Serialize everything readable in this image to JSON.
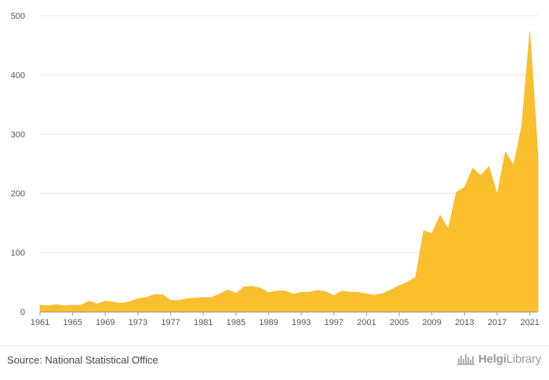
{
  "chart_data": {
    "type": "area",
    "title": "",
    "xlabel": "",
    "ylabel": "",
    "color": "#fbbf2e",
    "xlim": [
      1961,
      2022
    ],
    "ylim": [
      0,
      500
    ],
    "x_ticks": [
      1961,
      1965,
      1969,
      1973,
      1977,
      1981,
      1985,
      1989,
      1993,
      1997,
      2001,
      2005,
      2009,
      2013,
      2017,
      2021
    ],
    "y_ticks": [
      0,
      100,
      200,
      300,
      400,
      500
    ],
    "grid": "horizontal",
    "x": [
      1961,
      1962,
      1963,
      1964,
      1965,
      1966,
      1967,
      1968,
      1969,
      1970,
      1971,
      1972,
      1973,
      1974,
      1975,
      1976,
      1977,
      1978,
      1979,
      1980,
      1981,
      1982,
      1983,
      1984,
      1985,
      1986,
      1987,
      1988,
      1989,
      1990,
      1991,
      1992,
      1993,
      1994,
      1995,
      1996,
      1997,
      1998,
      1999,
      2000,
      2001,
      2002,
      2003,
      2004,
      2005,
      2006,
      2007,
      2008,
      2009,
      2010,
      2011,
      2012,
      2013,
      2014,
      2015,
      2016,
      2017,
      2018,
      2019,
      2020,
      2021,
      2022
    ],
    "values": [
      11,
      10,
      12,
      10,
      11,
      11,
      18,
      13,
      18,
      16,
      14,
      17,
      22,
      24,
      29,
      29,
      19,
      19,
      22,
      23,
      24,
      24,
      30,
      37,
      31,
      42,
      43,
      40,
      32,
      35,
      35,
      30,
      33,
      33,
      36,
      34,
      27,
      35,
      33,
      33,
      30,
      28,
      31,
      37,
      44,
      50,
      58,
      137,
      132,
      163,
      140,
      202,
      210,
      242,
      230,
      245,
      198,
      270,
      248,
      313,
      474,
      262
    ]
  },
  "footer": {
    "source": "Source: National Statistical Office",
    "logo_text_bold": "Helgi",
    "logo_text_regular": "Library",
    "logo_icon": "helgi-library-logo-icon"
  }
}
